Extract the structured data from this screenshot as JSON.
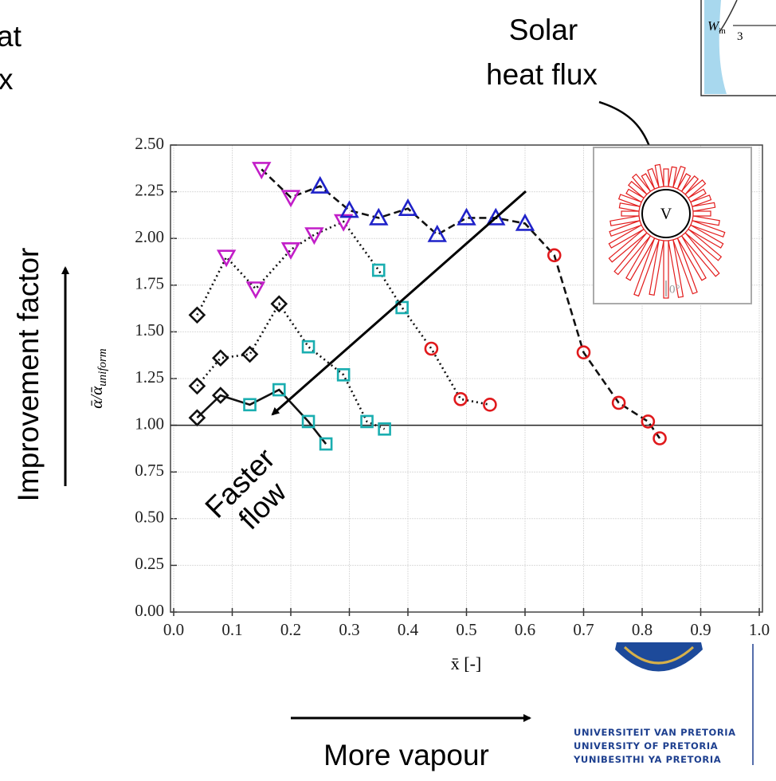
{
  "chart_data": {
    "type": "line",
    "y_label": "ᾱ/ᾱ",
    "y_label_sub": "uniform",
    "x_label": "x̄ [-]",
    "xlim": [
      0,
      1
    ],
    "ylim": [
      0,
      2.5
    ],
    "xticks": [
      {
        "value": 0,
        "label": "0.0"
      },
      0.1,
      0.2,
      0.3,
      0.4,
      0.5,
      0.6,
      0.7,
      0.8,
      0.9,
      {
        "value": 1,
        "label": "1.0"
      }
    ],
    "yticks": [
      {
        "value": 0,
        "label": "0.00"
      },
      0.25,
      {
        "value": 0.5,
        "label": "0.50"
      },
      0.75,
      {
        "value": 1,
        "label": "1.00"
      },
      1.25,
      {
        "value": 1.5,
        "label": "1.50"
      },
      1.75,
      {
        "value": 2,
        "label": "2.00"
      },
      2.25,
      {
        "value": 2.5,
        "label": "2.50"
      }
    ],
    "grid": true,
    "hline": 1,
    "marker_colors": {
      "diamond": "#111111",
      "square": "#1aaeb0",
      "triangle-down": "#c21ec8",
      "triangle-up": "#1f22c9",
      "circle": "#e0191c"
    },
    "series": [
      {
        "line_style": "solid",
        "x": [
          0.04,
          0.08,
          0.13,
          0.18,
          0.23,
          0.26
        ],
        "values": [
          1.04,
          1.16,
          1.11,
          1.19,
          1.02,
          0.9
        ],
        "markers": [
          "diamond",
          "diamond",
          "square",
          "square",
          "square",
          "square"
        ]
      },
      {
        "line_style": "dotted",
        "x": [
          0.04,
          0.08,
          0.13,
          0.18,
          0.23,
          0.29,
          0.33,
          0.36
        ],
        "values": [
          1.21,
          1.36,
          1.38,
          1.65,
          1.42,
          1.27,
          1.02,
          0.98
        ],
        "markers": [
          "diamond",
          "diamond",
          "diamond",
          "diamond",
          "square",
          "square",
          "square",
          "square"
        ]
      },
      {
        "line_style": "dotted",
        "x": [
          0.04,
          0.09,
          0.14,
          0.2,
          0.24,
          0.29,
          0.35,
          0.39,
          0.44,
          0.49,
          0.54
        ],
        "values": [
          1.59,
          1.9,
          1.73,
          1.94,
          2.02,
          2.09,
          1.83,
          1.63,
          1.41,
          1.14,
          1.11
        ],
        "markers": [
          "diamond",
          "triangle-down",
          "triangle-down",
          "triangle-down",
          "triangle-down",
          "triangle-down",
          "square",
          "square",
          "circle",
          "circle",
          "circle"
        ]
      },
      {
        "line_style": "dashed",
        "x": [
          0.15,
          0.2,
          0.25,
          0.3,
          0.35,
          0.4,
          0.45,
          0.5,
          0.55,
          0.6,
          0.65,
          0.7,
          0.76,
          0.81,
          0.83
        ],
        "values": [
          2.37,
          2.22,
          2.28,
          2.15,
          2.11,
          2.16,
          2.02,
          2.11,
          2.11,
          2.08,
          1.91,
          1.39,
          1.12,
          1.02,
          0.93
        ],
        "markers": [
          "triangle-down",
          "triangle-down",
          "triangle-up",
          "triangle-up",
          "triangle-up",
          "triangle-up",
          "triangle-up",
          "triangle-up",
          "triangle-up",
          "triangle-up",
          "circle",
          "circle",
          "circle",
          "circle",
          "circle"
        ]
      }
    ],
    "inset_label": "V",
    "inset_angle": "0°"
  },
  "annotations": {
    "solar_1": "Solar",
    "solar_2": "heat flux",
    "improvement": "Improvement factor",
    "faster_1": "Faster",
    "faster_2": "flow",
    "vapour": "More vapour",
    "cut_1": "at",
    "cut_2": "x",
    "corner_w": "W",
    "corner_w_sub": "in",
    "corner_num": "3"
  },
  "logo": [
    "UNIVERSITEIT VAN PRETORIA",
    "UNIVERSITY OF PRETORIA",
    "YUNIBESITHI YA PRETORIA"
  ]
}
